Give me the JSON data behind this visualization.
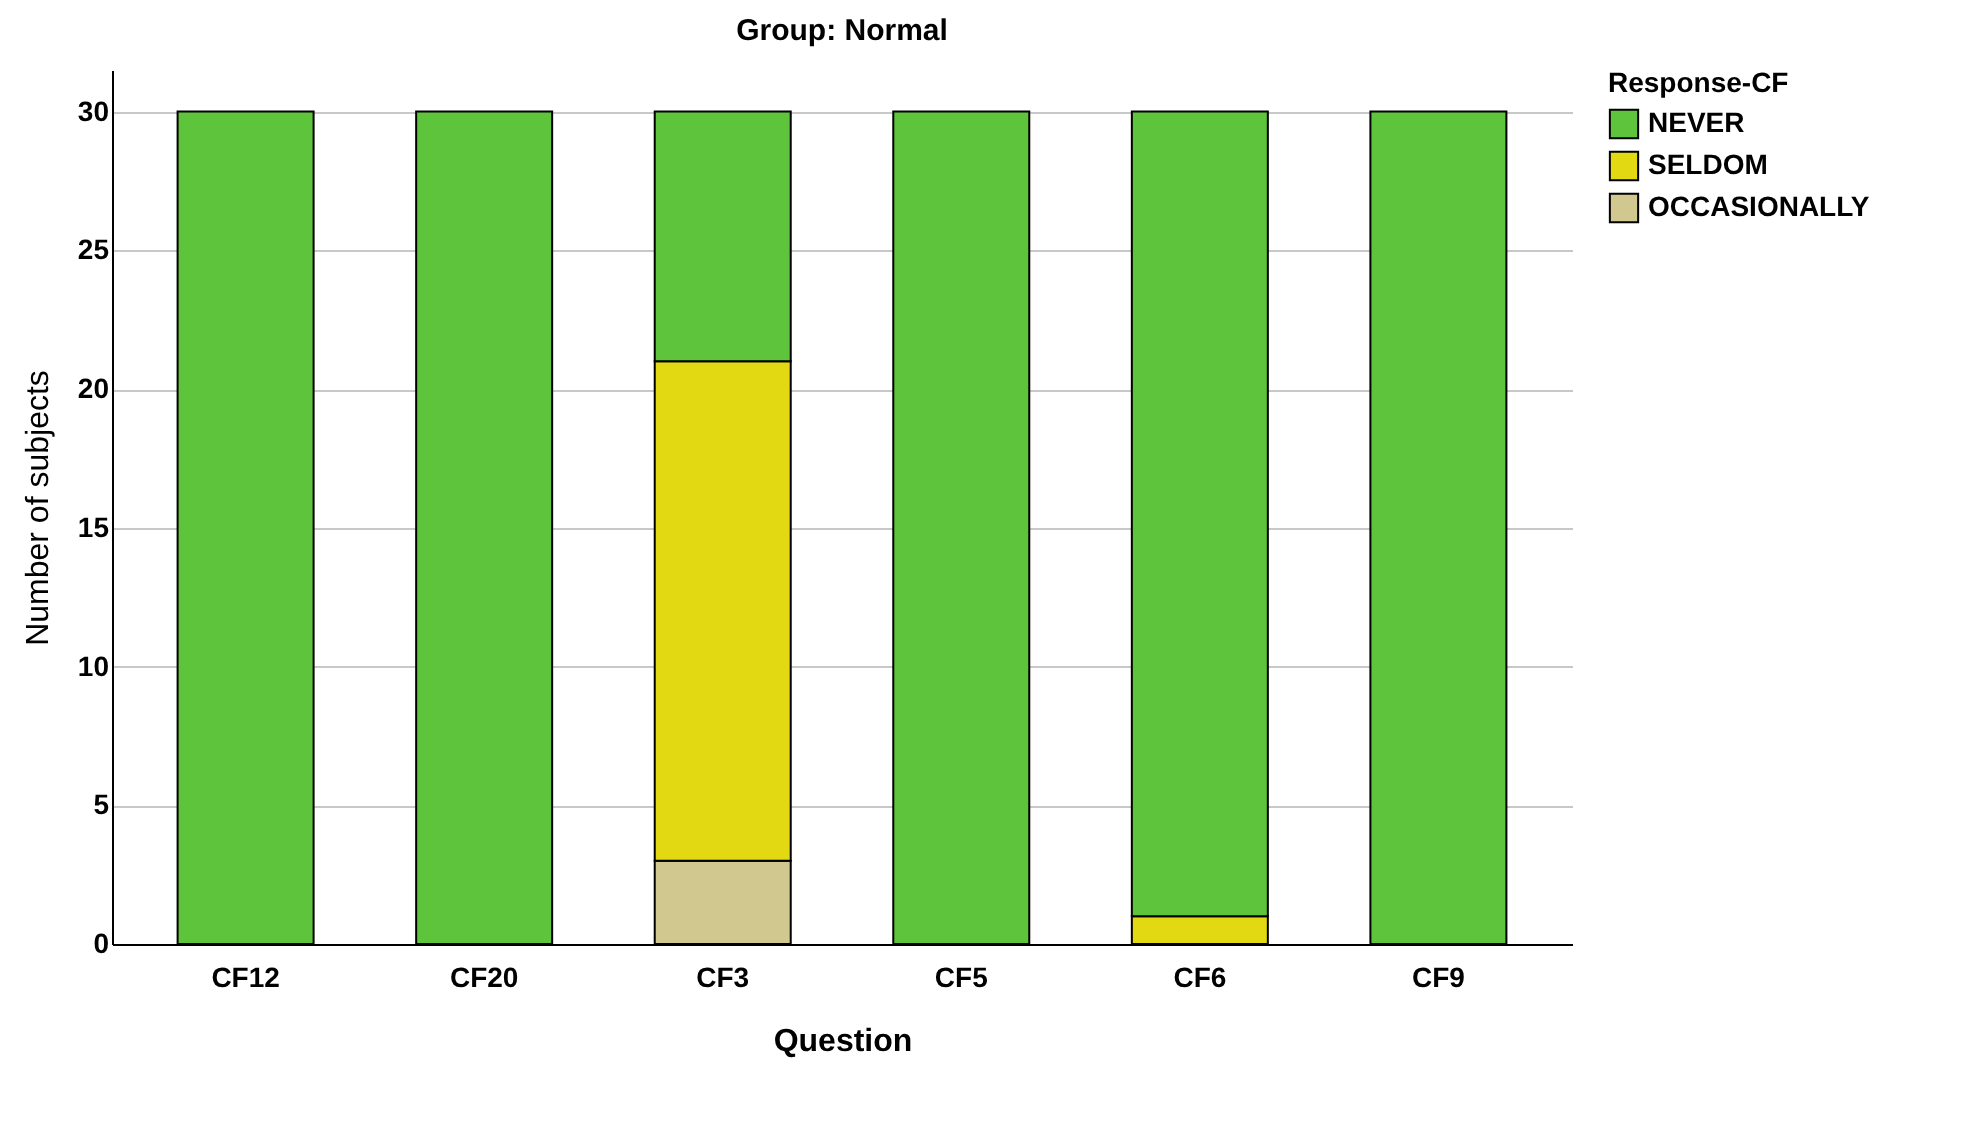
{
  "chart_data": {
    "type": "bar",
    "title": "Group: Normal",
    "xlabel": "Question",
    "ylabel": "Number of subjects",
    "legend_title": "Response-CF",
    "stacked": true,
    "categories": [
      "CF12",
      "CF20",
      "CF3",
      "CF5",
      "CF6",
      "CF9"
    ],
    "series": [
      {
        "name": "OCCASIONALLY",
        "color": "#d1c890",
        "values": [
          0,
          0,
          3,
          0,
          0,
          0
        ]
      },
      {
        "name": "SELDOM",
        "color": "#e3d912",
        "values": [
          0,
          0,
          18,
          0,
          1,
          0
        ]
      },
      {
        "name": "NEVER",
        "color": "#5ec43c",
        "values": [
          30,
          30,
          9,
          30,
          29,
          30
        ]
      }
    ],
    "ylim": [
      0,
      31.5
    ],
    "yticks": [
      0,
      5,
      10,
      15,
      20,
      25,
      30
    ],
    "grid": "y",
    "legend": "top right"
  }
}
